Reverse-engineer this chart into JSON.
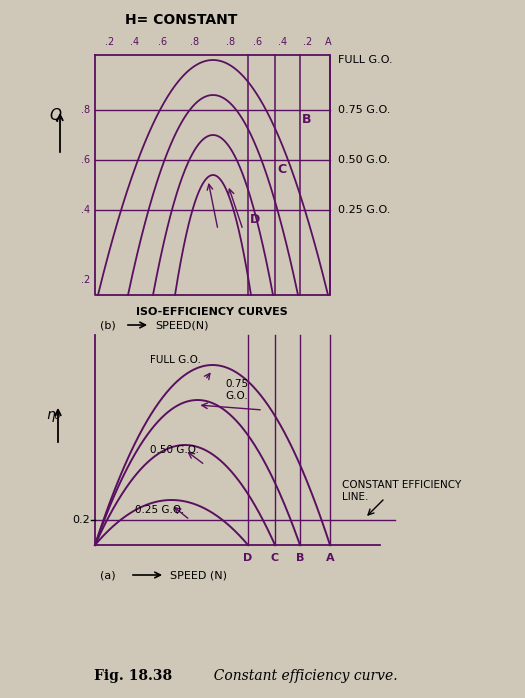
{
  "bg_color": "#cfc8b8",
  "line_color": "#5a1060",
  "title_b": "H= CONSTANT",
  "xlabel_b": "SPEED(N)",
  "ylabel_b": "Q",
  "panel_b_label": "(b)",
  "iso_label": "ISO-EFFICIENCY CURVES",
  "right_labels_b": [
    "FULL G.O.",
    "0.75 G.O.",
    "0.50 G.O.",
    "0.25 G.O."
  ],
  "xlabel_a": "SPEED (N)",
  "ylabel_a": "ηₒ",
  "panel_a_label": "(a)",
  "const_eff_label": "CONSTANT EFFICIENCY\nLINE.",
  "y02_label": "0.2",
  "fig_caption_bold": "Fig. 18.38",
  "fig_caption_italic": "  Constant efficiency curve."
}
